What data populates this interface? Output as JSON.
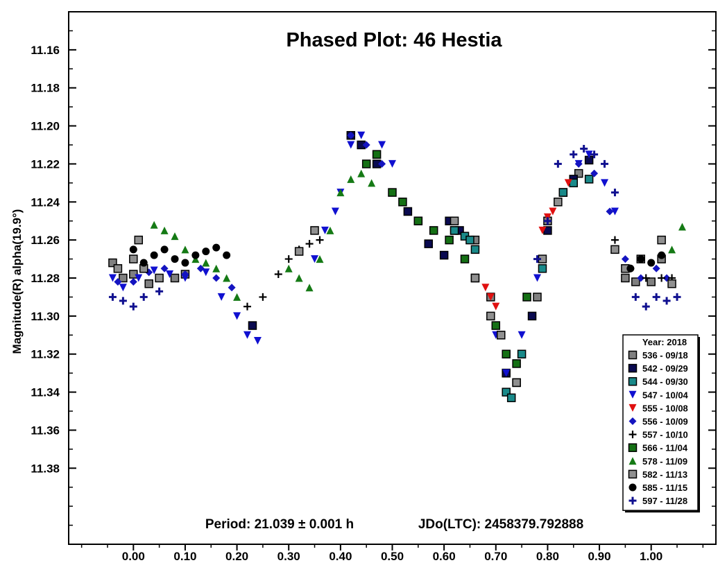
{
  "chart_data": {
    "type": "scatter",
    "title": "Phased Plot: 46 Hestia",
    "ylabel": "Magnitude(R) alpha(19.9°)",
    "xlabel": "",
    "annotation_period": "Period: 21.039 ± 0.001 h",
    "annotation_epoch": "JDo(LTC): 2458379.792888",
    "xlim": [
      -0.125,
      1.125
    ],
    "ylim": [
      11.42,
      11.14
    ],
    "y_inverted": true,
    "grid": false,
    "legend_position": "bottom-right",
    "x_ticks": [
      {
        "value": 0.0,
        "label": "0.00"
      },
      {
        "value": 0.1,
        "label": "0.10"
      },
      {
        "value": 0.2,
        "label": "0.20"
      },
      {
        "value": 0.3,
        "label": "0.30"
      },
      {
        "value": 0.4,
        "label": "0.40"
      },
      {
        "value": 0.5,
        "label": "0.50"
      },
      {
        "value": 0.6,
        "label": "0.60"
      },
      {
        "value": 0.7,
        "label": "0.70"
      },
      {
        "value": 0.8,
        "label": "0.80"
      },
      {
        "value": 0.9,
        "label": "0.90"
      },
      {
        "value": 1.0,
        "label": "1.00"
      }
    ],
    "y_ticks": [
      {
        "value": 11.16,
        "label": "11.16"
      },
      {
        "value": 11.18,
        "label": "11.18"
      },
      {
        "value": 11.2,
        "label": "11.20"
      },
      {
        "value": 11.22,
        "label": "11.22"
      },
      {
        "value": 11.24,
        "label": "11.24"
      },
      {
        "value": 11.26,
        "label": "11.26"
      },
      {
        "value": 11.28,
        "label": "11.28"
      },
      {
        "value": 11.3,
        "label": "11.30"
      },
      {
        "value": 11.32,
        "label": "11.32"
      },
      {
        "value": 11.34,
        "label": "11.34"
      },
      {
        "value": 11.36,
        "label": "11.36"
      },
      {
        "value": 11.38,
        "label": "11.38"
      }
    ],
    "legend_title": "Year: 2018",
    "series": [
      {
        "name": "536 - 09/18",
        "marker": "square",
        "color": "#808080",
        "x": [
          -0.04,
          -0.02,
          0.0,
          0.03,
          0.08,
          0.1,
          0.62,
          0.66,
          0.69,
          0.71,
          0.72,
          0.78,
          0.8,
          0.83,
          0.86,
          0.95,
          0.97,
          1.0,
          1.02
        ],
        "y": [
          11.272,
          11.28,
          11.278,
          11.283,
          11.28,
          11.278,
          11.255,
          11.26,
          11.29,
          11.31,
          11.33,
          11.29,
          11.25,
          11.235,
          11.225,
          11.28,
          11.282,
          11.282,
          11.27
        ]
      },
      {
        "name": "542 - 09/29",
        "marker": "square",
        "color": "#0a0a50",
        "x": [
          0.23,
          0.42,
          0.44,
          0.47,
          0.53,
          0.55,
          0.57,
          0.6,
          0.61,
          0.63,
          0.72,
          0.74,
          0.77,
          0.8,
          0.85,
          0.88
        ],
        "y": [
          11.305,
          11.205,
          11.21,
          11.22,
          11.245,
          11.25,
          11.262,
          11.268,
          11.25,
          11.255,
          11.33,
          11.335,
          11.3,
          11.255,
          11.228,
          11.218
        ]
      },
      {
        "name": "544 - 09/30",
        "marker": "square",
        "color": "#1a8a8a",
        "x": [
          0.62,
          0.64,
          0.65,
          0.66,
          0.72,
          0.73,
          0.75,
          0.79,
          0.83,
          0.85,
          0.88
        ],
        "y": [
          11.255,
          11.258,
          11.26,
          11.265,
          11.34,
          11.343,
          11.32,
          11.275,
          11.235,
          11.23,
          11.228
        ]
      },
      {
        "name": "547 - 10/04",
        "marker": "triangle-down",
        "color": "#1010d0",
        "x": [
          -0.04,
          -0.02,
          0.01,
          0.04,
          0.07,
          0.1,
          0.14,
          0.17,
          0.2,
          0.22,
          0.24,
          0.35,
          0.37,
          0.39,
          0.4,
          0.42,
          0.44,
          0.48,
          0.5,
          0.7,
          0.72,
          0.75,
          0.78,
          0.82,
          0.86,
          0.88,
          0.91,
          0.93
        ],
        "y": [
          11.28,
          11.285,
          11.28,
          11.276,
          11.278,
          11.28,
          11.277,
          11.29,
          11.3,
          11.31,
          11.313,
          11.27,
          11.255,
          11.245,
          11.235,
          11.21,
          11.205,
          11.21,
          11.22,
          11.31,
          11.33,
          11.31,
          11.28,
          11.24,
          11.22,
          11.215,
          11.23,
          11.245
        ]
      },
      {
        "name": "555 - 10/08",
        "marker": "triangle-down",
        "color": "#e01010",
        "x": [
          0.68,
          0.69,
          0.7,
          0.79,
          0.8,
          0.81,
          0.84
        ],
        "y": [
          11.285,
          11.29,
          11.295,
          11.255,
          11.248,
          11.245,
          11.23
        ]
      },
      {
        "name": "556 - 10/09",
        "marker": "diamond",
        "color": "#1414c0",
        "x": [
          -0.03,
          0.0,
          0.03,
          0.06,
          0.1,
          0.13,
          0.16,
          0.19,
          0.42,
          0.45,
          0.48,
          0.86,
          0.89,
          0.92,
          0.95,
          0.98,
          1.01,
          1.03
        ],
        "y": [
          11.282,
          11.282,
          11.277,
          11.275,
          11.278,
          11.275,
          11.28,
          11.285,
          11.205,
          11.21,
          11.22,
          11.22,
          11.225,
          11.245,
          11.27,
          11.28,
          11.275,
          11.28
        ]
      },
      {
        "name": "557 - 10/10",
        "marker": "plus",
        "color": "#000000",
        "x": [
          0.22,
          0.25,
          0.28,
          0.3,
          0.32,
          0.34,
          0.36,
          0.93,
          0.96,
          0.99,
          1.02,
          1.04
        ],
        "y": [
          11.295,
          11.29,
          11.278,
          11.27,
          11.265,
          11.262,
          11.26,
          11.26,
          11.275,
          11.28,
          11.28,
          11.28
        ]
      },
      {
        "name": "566 - 11/04",
        "marker": "square",
        "color": "#157015",
        "x": [
          0.45,
          0.47,
          0.5,
          0.52,
          0.55,
          0.58,
          0.61,
          0.64,
          0.66,
          0.7,
          0.72,
          0.74,
          0.76
        ],
        "y": [
          11.22,
          11.215,
          11.235,
          11.24,
          11.25,
          11.255,
          11.26,
          11.27,
          11.28,
          11.305,
          11.32,
          11.325,
          11.29
        ]
      },
      {
        "name": "578 - 11/09",
        "marker": "triangle-up",
        "color": "#157a15",
        "x": [
          0.04,
          0.06,
          0.08,
          0.1,
          0.12,
          0.14,
          0.16,
          0.18,
          0.2,
          0.3,
          0.32,
          0.34,
          0.36,
          0.38,
          0.4,
          0.42,
          0.44,
          0.46,
          1.04,
          1.06
        ],
        "y": [
          11.252,
          11.255,
          11.258,
          11.265,
          11.27,
          11.272,
          11.275,
          11.28,
          11.29,
          11.275,
          11.28,
          11.285,
          11.27,
          11.255,
          11.235,
          11.228,
          11.225,
          11.23,
          11.265,
          11.253
        ]
      },
      {
        "name": "582 - 11/13",
        "marker": "square",
        "color": "#909090",
        "x": [
          -0.03,
          0.0,
          0.01,
          0.02,
          0.05,
          0.32,
          0.35,
          0.62,
          0.66,
          0.69,
          0.71,
          0.74,
          0.79,
          0.82,
          0.93,
          0.95,
          0.98,
          1.02,
          1.04
        ],
        "y": [
          11.275,
          11.27,
          11.26,
          11.275,
          11.28,
          11.266,
          11.255,
          11.25,
          11.28,
          11.3,
          11.31,
          11.335,
          11.27,
          11.24,
          11.265,
          11.275,
          11.27,
          11.26,
          11.283
        ]
      },
      {
        "name": "585 - 11/15",
        "marker": "circle",
        "color": "#000000",
        "x": [
          0.0,
          0.02,
          0.04,
          0.06,
          0.08,
          0.1,
          0.12,
          0.14,
          0.16,
          0.18,
          0.96,
          0.98,
          1.0,
          1.02
        ],
        "y": [
          11.265,
          11.272,
          11.268,
          11.265,
          11.27,
          11.272,
          11.268,
          11.266,
          11.264,
          11.268,
          11.275,
          11.27,
          11.272,
          11.268
        ]
      },
      {
        "name": "597 - 11/28",
        "marker": "plus-thick",
        "color": "#101090",
        "x": [
          -0.04,
          -0.02,
          0.0,
          0.02,
          0.05,
          0.78,
          0.8,
          0.82,
          0.85,
          0.87,
          0.89,
          0.91,
          0.93,
          0.97,
          0.99,
          1.01,
          1.03,
          1.05
        ],
        "y": [
          11.29,
          11.292,
          11.295,
          11.29,
          11.287,
          11.27,
          11.25,
          11.22,
          11.215,
          11.212,
          11.215,
          11.22,
          11.235,
          11.29,
          11.295,
          11.29,
          11.292,
          11.29
        ]
      }
    ]
  }
}
